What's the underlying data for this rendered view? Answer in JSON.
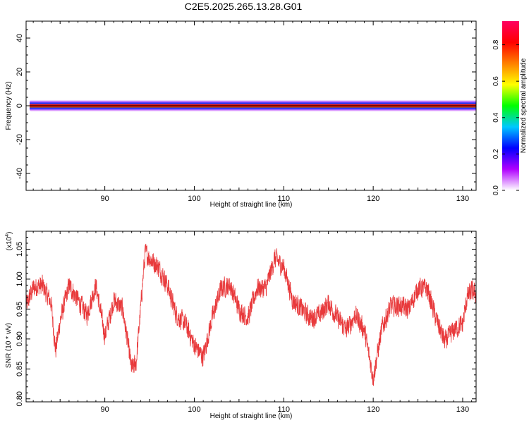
{
  "page": {
    "title": "C2E5.2025.265.13.28.G01"
  },
  "colors": {
    "snr_line": "#e8393b",
    "frame": "#000000",
    "center_line": "#000000"
  },
  "chart_data": [
    {
      "type": "heatmap",
      "title": "C2E5.2025.265.13.28.G01",
      "xlabel": "Height of straight line (km)",
      "ylabel": "Frequency (Hz)",
      "xlim": [
        81.2,
        131.5
      ],
      "ylim": [
        -50,
        50
      ],
      "x_ticks": [
        "90",
        "100",
        "110",
        "120",
        "130"
      ],
      "y_ticks": [
        "40",
        "20",
        "0",
        "-20",
        "-40"
      ],
      "band_center_hz": 0,
      "colorbar": {
        "label": "Normalized spectral amplitude",
        "range": [
          0,
          0.93
        ],
        "ticks": [
          "0.0",
          "0.2",
          "0.4",
          "0.6",
          "0.8"
        ],
        "colors": [
          "#ffffff",
          "#b000ff",
          "#0000ff",
          "#00c8ff",
          "#00ff00",
          "#ffff00",
          "#ff8000",
          "#ff0000",
          "#ff0060"
        ]
      }
    },
    {
      "type": "line",
      "xlabel": "Height of straight line (km)",
      "ylabel": "SNR (10 * v/v)",
      "scale_label": "(x10",
      "scale_exponent": "4",
      "scale_suffix": ")",
      "xlim": [
        81.2,
        131.5
      ],
      "ylim": [
        0.795,
        1.08
      ],
      "x_ticks": [
        "90",
        "100",
        "110",
        "120",
        "130"
      ],
      "y_ticks": [
        "1.05",
        "1.00",
        "0.95",
        "0.90",
        "0.85",
        "0.80"
      ],
      "series": [
        {
          "x": [
            81.2,
            82.0,
            83.0,
            84.0,
            84.5,
            85.0,
            86.0,
            87.0,
            88.0,
            89.0,
            90.0,
            91.0,
            92.0,
            93.0,
            93.5,
            94.0,
            94.5,
            95.0,
            96.0,
            97.0,
            98.0,
            99.0,
            100.0,
            101.0,
            102.0,
            103.0,
            104.0,
            105.0,
            106.0,
            107.0,
            108.0,
            109.0,
            110.0,
            111.0,
            112.0,
            113.0,
            114.0,
            115.0,
            116.0,
            117.0,
            118.0,
            119.0,
            120.0,
            121.0,
            122.0,
            123.0,
            124.0,
            125.0,
            126.0,
            127.0,
            128.0,
            129.0,
            130.0,
            130.5,
            131.0,
            131.5
          ],
          "y": [
            0.955,
            0.985,
            0.99,
            0.96,
            0.88,
            0.93,
            0.99,
            0.965,
            0.94,
            0.99,
            0.905,
            0.965,
            0.95,
            0.85,
            0.86,
            0.95,
            1.045,
            1.035,
            1.02,
            0.99,
            0.94,
            0.925,
            0.89,
            0.87,
            0.935,
            0.985,
            0.99,
            0.95,
            0.935,
            0.985,
            0.985,
            1.035,
            1.02,
            0.965,
            0.95,
            0.935,
            0.94,
            0.96,
            0.935,
            0.915,
            0.94,
            0.915,
            0.835,
            0.92,
            0.955,
            0.955,
            0.95,
            0.985,
            0.985,
            0.935,
            0.895,
            0.915,
            0.925,
            0.97,
            0.98,
            0.975
          ]
        }
      ]
    }
  ]
}
